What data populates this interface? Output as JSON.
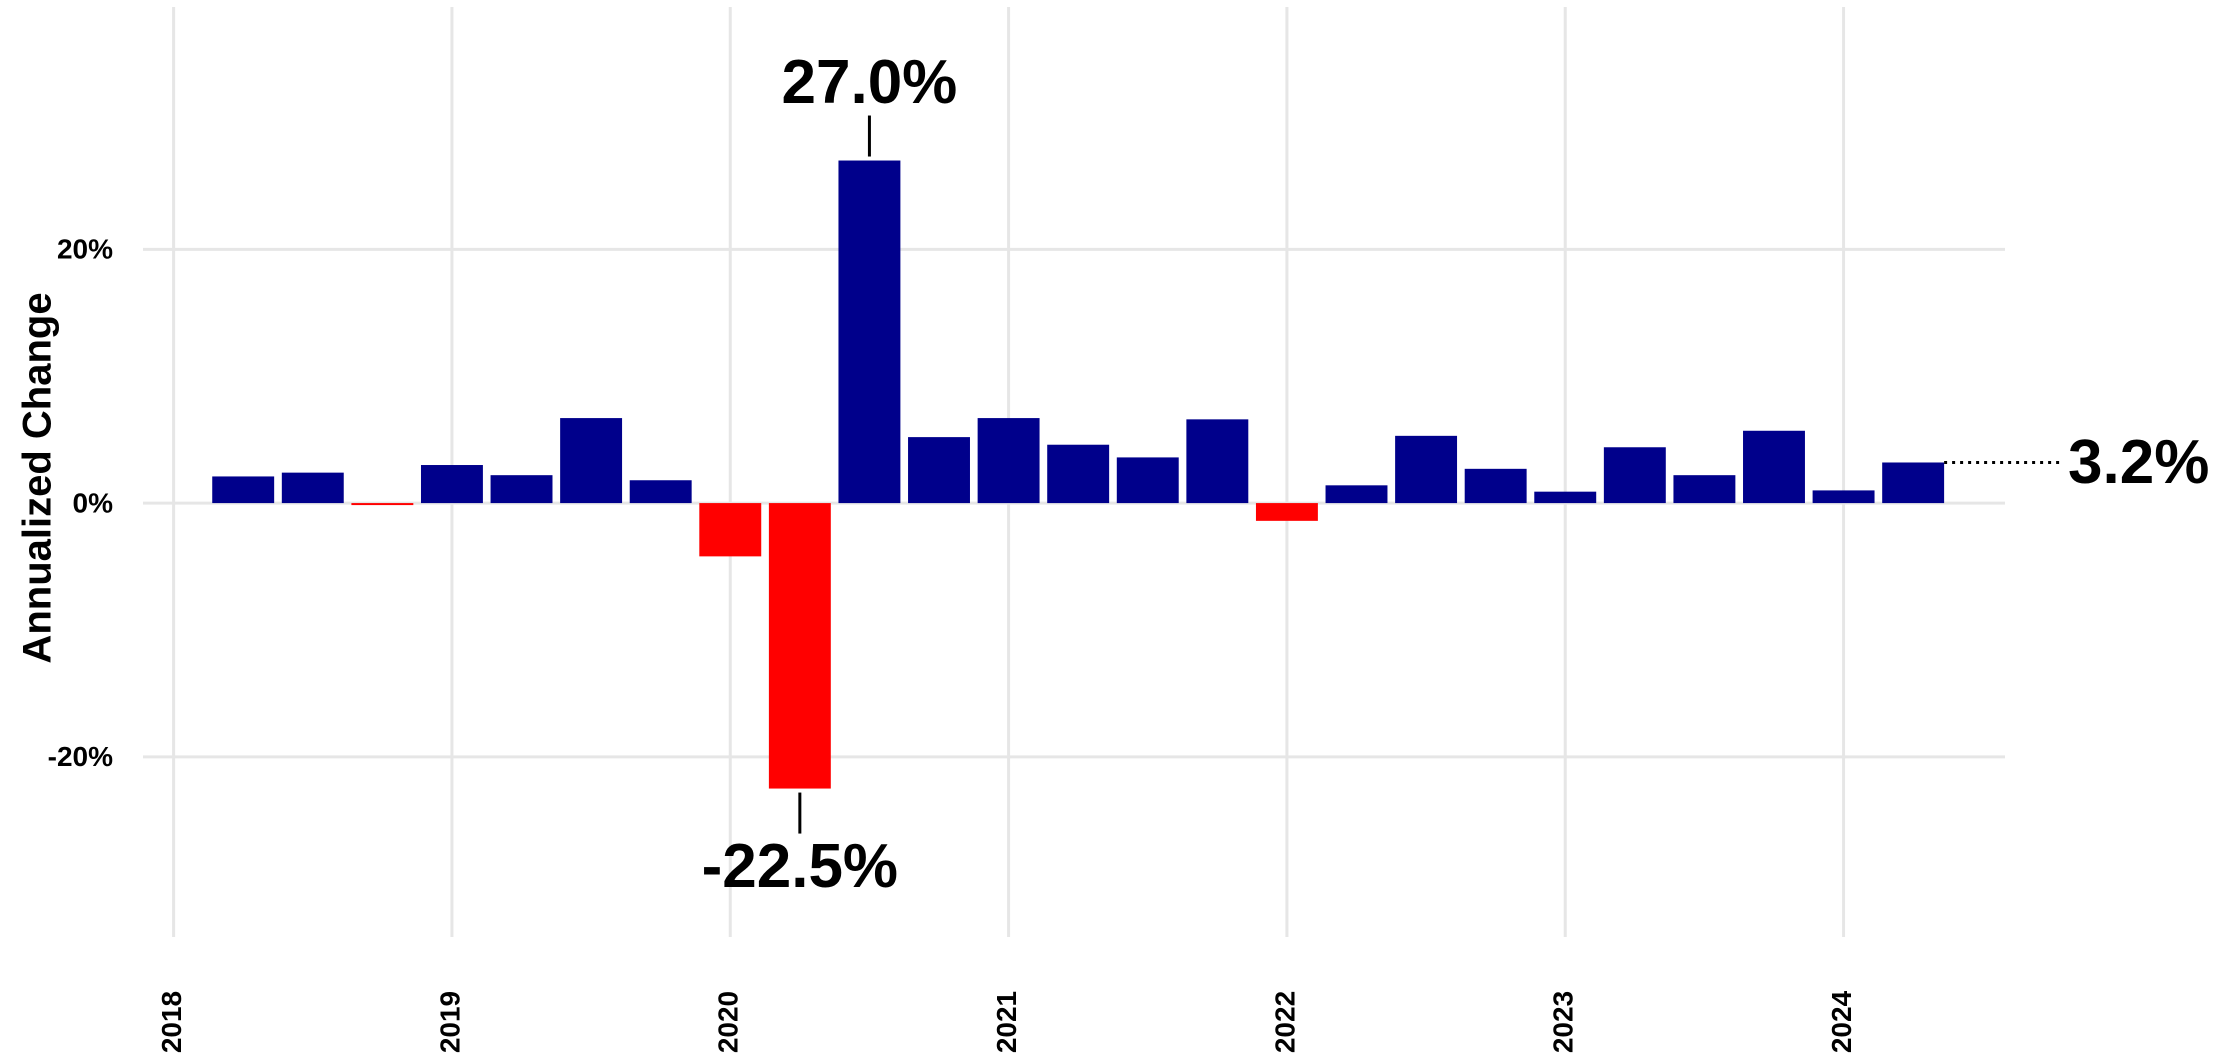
{
  "chart_data": {
    "type": "bar",
    "y_label": "Annualized Change",
    "x": [
      2018.25,
      2018.5,
      2018.75,
      2019.0,
      2019.25,
      2019.5,
      2019.75,
      2020.0,
      2020.25,
      2020.5,
      2020.75,
      2021.0,
      2021.25,
      2021.5,
      2021.75,
      2022.0,
      2022.25,
      2022.5,
      2022.75,
      2023.0,
      2023.25,
      2023.5,
      2023.75,
      2024.0,
      2024.25
    ],
    "values": [
      2.1,
      2.4,
      -0.1,
      3.0,
      2.2,
      6.7,
      1.8,
      -4.2,
      -22.5,
      27.0,
      5.2,
      6.7,
      4.6,
      3.6,
      6.6,
      -1.4,
      1.4,
      5.3,
      2.7,
      0.9,
      4.4,
      2.2,
      5.7,
      1.0,
      3.2
    ],
    "value_labels": [
      null,
      null,
      null,
      null,
      null,
      null,
      null,
      null,
      "-22.5%",
      "27.0%",
      null,
      null,
      null,
      null,
      null,
      null,
      null,
      null,
      null,
      null,
      null,
      null,
      null,
      null,
      "3.2%"
    ],
    "color": "#00008b",
    "negative_color": "#ff0000",
    "xlim": [
      2017.89,
      2024.58
    ],
    "xticks": [
      2018,
      2019,
      2020,
      2021,
      2022,
      2023,
      2024
    ],
    "ylim": [
      -34.2,
      39.1
    ],
    "yticks": [
      {
        "value": -20,
        "label": "-20%"
      },
      {
        "value": 0,
        "label": "0%"
      },
      {
        "value": 20,
        "label": "20%"
      }
    ],
    "grid": true
  }
}
